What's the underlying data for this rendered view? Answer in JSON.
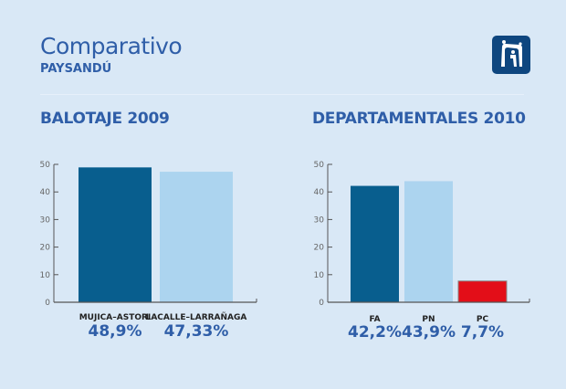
{
  "header": {
    "title": "Comparativo",
    "subtitle": "PAYSANDÚ",
    "logo_icon": "building-arch-logo-icon"
  },
  "colors": {
    "background": "#d9e8f6",
    "heading": "#2f5ea8",
    "dark_blue": "#085e8e",
    "light_blue": "#acd4ef",
    "red": "#e30e18",
    "axis": "#555555"
  },
  "chart_data": [
    {
      "type": "bar",
      "title": "BALOTAJE 2009",
      "categories": [
        "MUJICA–ASTORI",
        "LACALLE–LARRAÑAGA"
      ],
      "values": [
        48.9,
        47.33
      ],
      "value_labels": [
        "48,9%",
        "47,33%"
      ],
      "colors": [
        "#085e8e",
        "#acd4ef"
      ],
      "yticks": [
        0,
        10,
        20,
        30,
        40,
        50
      ],
      "ylim": [
        0,
        50
      ],
      "xlabel": "",
      "ylabel": "",
      "grid": false
    },
    {
      "type": "bar",
      "title": "DEPARTAMENTALES 2010",
      "categories": [
        "FA",
        "PN",
        "PC"
      ],
      "values": [
        42.2,
        43.9,
        7.7
      ],
      "value_labels": [
        "42,2%",
        "43,9%",
        "7,7%"
      ],
      "colors": [
        "#085e8e",
        "#acd4ef",
        "#e30e18"
      ],
      "yticks": [
        0,
        10,
        20,
        30,
        40,
        50
      ],
      "ylim": [
        0,
        50
      ],
      "xlabel": "",
      "ylabel": "",
      "grid": false
    }
  ]
}
